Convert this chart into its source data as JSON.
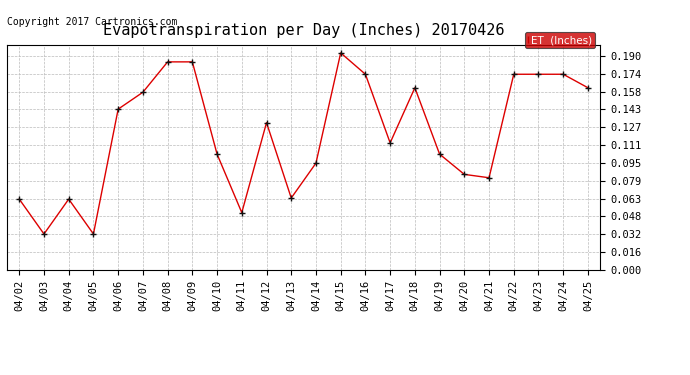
{
  "title": "Evapotranspiration per Day (Inches) 20170426",
  "copyright": "Copyright 2017 Cartronics.com",
  "legend_label": "ET  (Inches)",
  "dates": [
    "04/02",
    "04/03",
    "04/04",
    "04/05",
    "04/06",
    "04/07",
    "04/08",
    "04/09",
    "04/10",
    "04/11",
    "04/12",
    "04/13",
    "04/14",
    "04/15",
    "04/16",
    "04/17",
    "04/18",
    "04/19",
    "04/20",
    "04/21",
    "04/22",
    "04/23",
    "04/24",
    "04/25"
  ],
  "values": [
    0.063,
    0.032,
    0.063,
    0.032,
    0.143,
    0.158,
    0.185,
    0.185,
    0.103,
    0.051,
    0.131,
    0.064,
    0.095,
    0.193,
    0.174,
    0.113,
    0.162,
    0.103,
    0.085,
    0.082,
    0.174,
    0.174,
    0.174,
    0.162
  ],
  "ylim": [
    0.0,
    0.2
  ],
  "yticks": [
    0.0,
    0.016,
    0.032,
    0.048,
    0.063,
    0.079,
    0.095,
    0.111,
    0.127,
    0.143,
    0.158,
    0.174,
    0.19
  ],
  "line_color": "#dd0000",
  "marker_color": "#111111",
  "bg_color": "#ffffff",
  "grid_color": "#bbbbbb",
  "legend_bg": "#cc0000",
  "legend_text_color": "#ffffff",
  "title_fontsize": 11,
  "copyright_fontsize": 7,
  "tick_fontsize": 7.5,
  "legend_fontsize": 7.5
}
